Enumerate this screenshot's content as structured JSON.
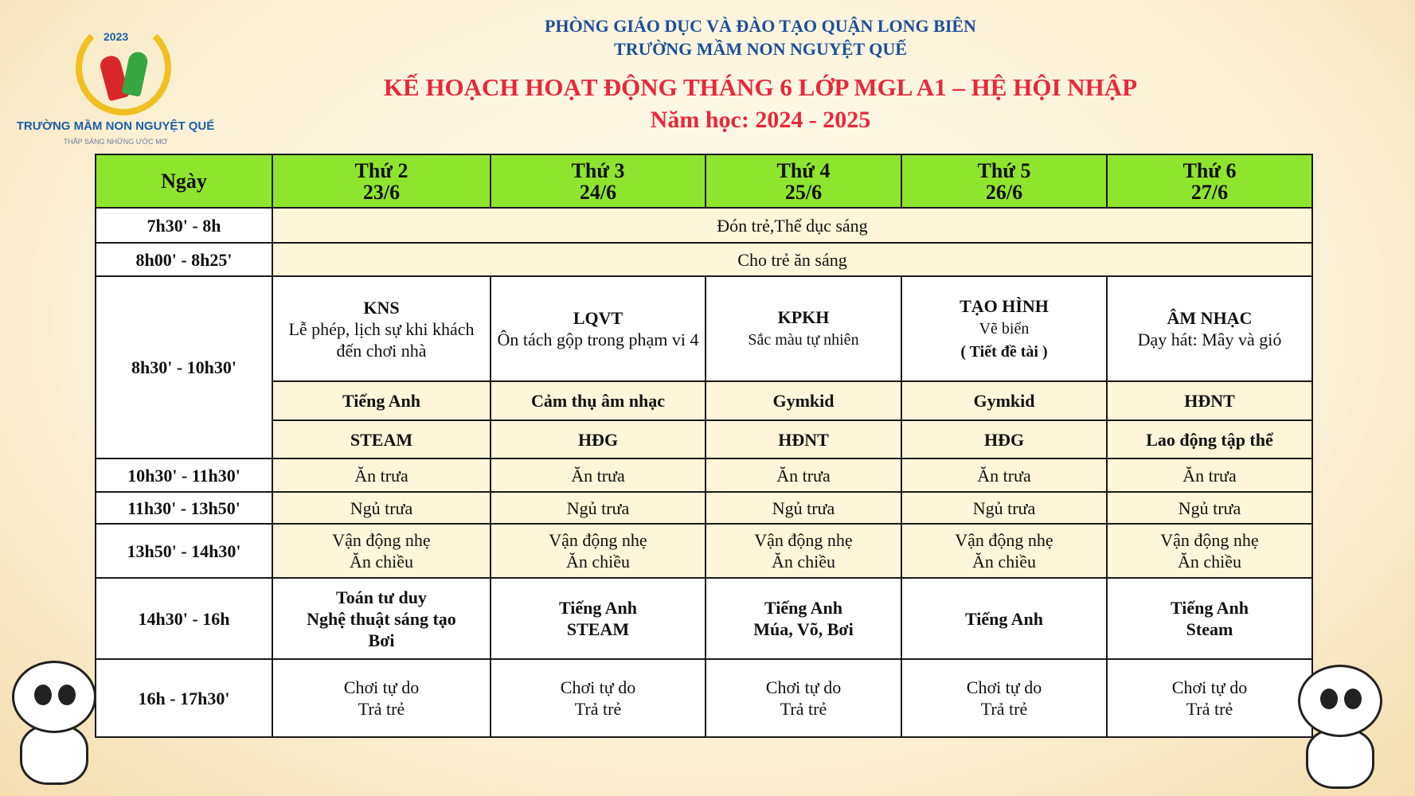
{
  "logo": {
    "year": "2023",
    "name": "TRƯỜNG MẦM NON NGUYỆT QUẾ",
    "slogan": "THẮP SÁNG NHỮNG ƯỚC MƠ"
  },
  "header": {
    "line1": "PHÒNG GIÁO DỤC VÀ ĐÀO TẠO QUẬN LONG BIÊN",
    "line2": "TRƯỜNG MẦM NON NGUYỆT QUẾ",
    "title": "KẾ HOẠCH HOẠT ĐỘNG THÁNG 6 LỚP MGL A1 – HỆ HỘI NHẬP",
    "year": "Năm học: 2024 - 2025"
  },
  "colors": {
    "header_bg": "#8ee52e",
    "title": "#e8283a",
    "subtitle": "#1d4f9a",
    "cell_cream": "#fdf6d8"
  },
  "table": {
    "corner": "Ngày",
    "days": [
      {
        "name": "Thứ 2",
        "date": "23/6"
      },
      {
        "name": "Thứ 3",
        "date": "24/6"
      },
      {
        "name": "Thứ 4",
        "date": "25/6"
      },
      {
        "name": "Thứ 5",
        "date": "26/6"
      },
      {
        "name": "Thứ 6",
        "date": "27/6"
      }
    ],
    "r1": {
      "time": "7h30' - 8h",
      "text": "Đón trẻ,Thể dục sáng"
    },
    "r2": {
      "time": "8h00' - 8h25'",
      "text": "Cho trẻ ăn sáng"
    },
    "r3": {
      "time": "8h30' - 10h30'",
      "main": [
        {
          "title": "KNS",
          "desc": "Lễ phép, lịch sự khi khách đến chơi nhà",
          "note": ""
        },
        {
          "title": "LQVT",
          "desc": "Ôn tách gộp trong phạm vi 4",
          "note": ""
        },
        {
          "title": "KPKH",
          "desc": "Sắc màu tự nhiên",
          "note": ""
        },
        {
          "title": "TẠO HÌNH",
          "desc": "Vẽ biển",
          "note": "( Tiết đề tài )"
        },
        {
          "title": "ÂM NHẠC",
          "desc": "Dạy hát: Mây và gió",
          "note": ""
        }
      ],
      "second": [
        "Tiếng Anh",
        "Cảm thụ âm nhạc",
        "Gymkid",
        "Gymkid",
        "HĐNT"
      ],
      "third": [
        "STEAM",
        "HĐG",
        "HĐNT",
        "HĐG",
        "Lao động tập thể"
      ]
    },
    "r4": {
      "time": "10h30' - 11h30'",
      "cells": [
        "Ăn trưa",
        "Ăn trưa",
        "Ăn trưa",
        "Ăn trưa",
        "Ăn trưa"
      ]
    },
    "r5": {
      "time": "11h30' - 13h50'",
      "cells": [
        "Ngủ trưa",
        "Ngủ trưa",
        "Ngủ trưa",
        "Ngủ trưa",
        "Ngủ trưa"
      ]
    },
    "r6": {
      "time": "13h50' - 14h30'",
      "cells": [
        [
          "Vận động nhẹ",
          "Ăn chiều"
        ],
        [
          "Vận động nhẹ",
          "Ăn chiều"
        ],
        [
          "Vận động nhẹ",
          "Ăn chiều"
        ],
        [
          "Vận động nhẹ",
          "Ăn chiều"
        ],
        [
          "Vận động nhẹ",
          "Ăn chiều"
        ]
      ]
    },
    "r7": {
      "time": "14h30' - 16h",
      "cells": [
        [
          "Toán tư duy",
          "Nghệ thuật sáng tạo",
          "Bơi"
        ],
        [
          "Tiếng Anh",
          "STEAM"
        ],
        [
          "Tiếng Anh",
          "Múa, Võ, Bơi"
        ],
        [
          "Tiếng Anh"
        ],
        [
          "Tiếng Anh",
          "Steam"
        ]
      ]
    },
    "r8": {
      "time": "16h - 17h30'",
      "cells": [
        [
          "Chơi tự do",
          "Trả trẻ"
        ],
        [
          "Chơi tự do",
          "Trả trẻ"
        ],
        [
          "Chơi tự do",
          "Trả trẻ"
        ],
        [
          "Chơi tự do",
          "Trả trẻ"
        ],
        [
          "Chơi tự do",
          "Trả trẻ"
        ]
      ]
    }
  }
}
